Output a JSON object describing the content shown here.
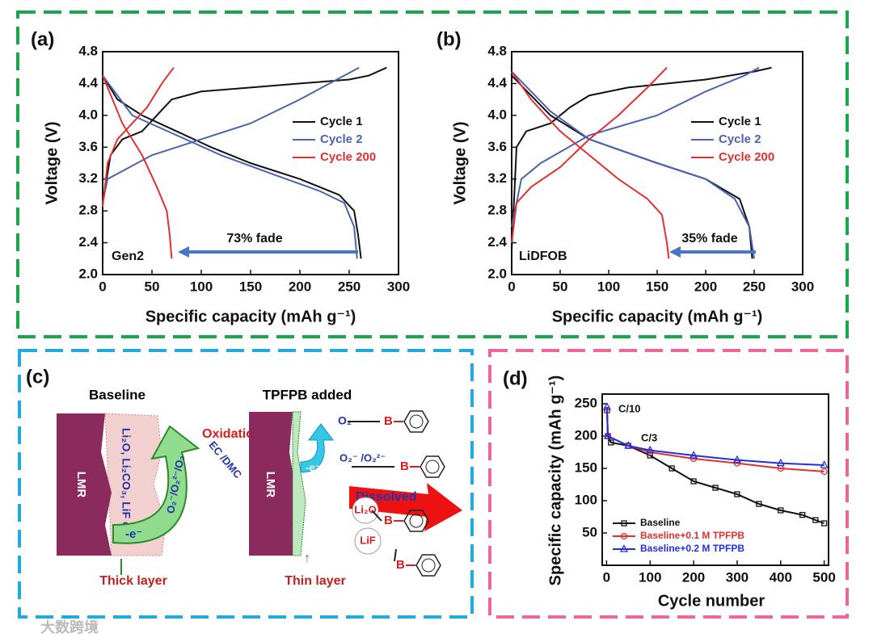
{
  "chart_data": [
    {
      "type": "line",
      "label": "(a)",
      "x_label": "Specific capacity (mAh g⁻¹)",
      "y_label": "Voltage (V)",
      "xlim": [
        0,
        300
      ],
      "xticks": [
        0,
        50,
        100,
        150,
        200,
        250,
        300
      ],
      "ylim": [
        2,
        4.8
      ],
      "yticks": [
        {
          "value": 2,
          "label": "2.0"
        },
        2.4,
        2.8,
        3.2,
        3.6,
        {
          "value": 4,
          "label": "4.0"
        },
        4.4,
        4.8
      ],
      "legend": "right",
      "annotations": [
        "Gen2",
        "73% fade"
      ],
      "series": [
        {
          "name": "Cycle 1",
          "color": "#111111",
          "x": [
            0,
            8,
            20,
            40,
            55,
            70,
            100,
            150,
            200,
            250,
            270,
            288,
            null,
            0,
            15,
            40,
            75,
            110,
            150,
            200,
            240,
            255,
            259,
            262
          ],
          "values": [
            2.9,
            3.5,
            3.7,
            3.8,
            4.0,
            4.2,
            4.3,
            4.35,
            4.4,
            4.45,
            4.5,
            4.6,
            null,
            4.5,
            4.2,
            4.0,
            3.8,
            3.6,
            3.4,
            3.2,
            3.0,
            2.8,
            2.5,
            2.2
          ]
        },
        {
          "name": "Cycle 2",
          "color": "#4a64b0",
          "x": [
            0,
            5,
            20,
            50,
            100,
            150,
            200,
            230,
            260,
            null,
            0,
            30,
            75,
            120,
            175,
            220,
            245,
            255,
            258
          ],
          "values": [
            2.9,
            3.2,
            3.3,
            3.5,
            3.7,
            3.9,
            4.2,
            4.4,
            4.6,
            null,
            4.5,
            4.0,
            3.75,
            3.5,
            3.25,
            3.05,
            2.9,
            2.6,
            2.2
          ]
        },
        {
          "name": "Cycle 200",
          "color": "#e03030",
          "x": [
            0,
            5,
            15,
            30,
            45,
            60,
            72,
            null,
            0,
            20,
            40,
            55,
            65,
            68,
            70
          ],
          "values": [
            2.85,
            3.4,
            3.7,
            3.9,
            4.1,
            4.4,
            4.6,
            null,
            4.5,
            3.9,
            3.5,
            3.1,
            2.8,
            2.5,
            2.2
          ]
        }
      ]
    },
    {
      "type": "line",
      "label": "(b)",
      "x_label": "Specific capacity (mAh g⁻¹)",
      "y_label": "Voltage (V)",
      "xlim": [
        0,
        300
      ],
      "xticks": [
        0,
        50,
        100,
        150,
        200,
        250,
        300
      ],
      "ylim": [
        2,
        4.8
      ],
      "yticks": [
        {
          "value": 2,
          "label": "2.0"
        },
        2.4,
        2.8,
        3.2,
        3.6,
        {
          "value": 4,
          "label": "4.0"
        },
        4.4,
        4.8
      ],
      "legend": "right",
      "annotations": [
        "LiDFOB",
        "35% fade"
      ],
      "series": [
        {
          "name": "Cycle 1",
          "color": "#111111",
          "x": [
            0,
            5,
            15,
            40,
            60,
            80,
            120,
            200,
            250,
            268,
            null,
            0,
            40,
            80,
            150,
            200,
            235,
            245,
            248
          ],
          "values": [
            2.3,
            3.6,
            3.8,
            3.9,
            4.1,
            4.25,
            4.35,
            4.45,
            4.55,
            4.6,
            null,
            4.5,
            4.0,
            3.7,
            3.4,
            3.2,
            2.95,
            2.6,
            2.2
          ]
        },
        {
          "name": "Cycle 2",
          "color": "#4a64b0",
          "x": [
            0,
            10,
            30,
            80,
            150,
            200,
            240,
            255,
            null,
            0,
            40,
            80,
            150,
            200,
            230,
            245,
            250
          ],
          "values": [
            2.6,
            3.2,
            3.4,
            3.75,
            4.0,
            4.3,
            4.5,
            4.6,
            null,
            4.55,
            4.05,
            3.7,
            3.4,
            3.2,
            2.95,
            2.6,
            2.2
          ]
        },
        {
          "name": "Cycle 200",
          "color": "#e03030",
          "x": [
            0,
            5,
            20,
            50,
            80,
            110,
            140,
            160,
            null,
            0,
            20,
            50,
            80,
            110,
            140,
            155,
            160,
            162
          ],
          "values": [
            2.4,
            2.9,
            3.1,
            3.35,
            3.7,
            4.0,
            4.35,
            4.6,
            null,
            4.55,
            4.2,
            3.8,
            3.5,
            3.2,
            2.95,
            2.75,
            2.4,
            2.2
          ]
        }
      ]
    },
    {
      "type": "line",
      "label": "(d)",
      "x_label": "Cycle number",
      "y_label": "Specific capacity (mAh g⁻¹)",
      "xlim": [
        -10,
        510
      ],
      "xticks": [
        0,
        100,
        200,
        300,
        400,
        500
      ],
      "ylim": [
        0,
        265
      ],
      "yticks": [
        50,
        100,
        150,
        200,
        250
      ],
      "legend": "lower left",
      "annotations": [
        "C/10",
        "C/3"
      ],
      "series": [
        {
          "name": "Baseline",
          "color": "#111111",
          "marker": "square",
          "x": [
            1,
            3,
            10,
            50,
            100,
            150,
            200,
            250,
            300,
            350,
            400,
            450,
            480,
            500
          ],
          "values": [
            240,
            200,
            190,
            185,
            170,
            150,
            130,
            120,
            110,
            95,
            85,
            78,
            70,
            65
          ]
        },
        {
          "name": "Baseline+0.1 M TPFPB",
          "color": "#e03030",
          "marker": "circle",
          "x": [
            1,
            3,
            50,
            100,
            200,
            300,
            400,
            500
          ],
          "values": [
            240,
            200,
            185,
            175,
            165,
            158,
            150,
            145
          ]
        },
        {
          "name": "Baseline+0.2 M TPFPB",
          "color": "#2030e0",
          "marker": "triangle",
          "x": [
            1,
            3,
            50,
            100,
            200,
            300,
            400,
            500
          ],
          "values": [
            245,
            200,
            185,
            178,
            170,
            163,
            158,
            155
          ]
        }
      ]
    }
  ],
  "diagram": {
    "label": "(c)",
    "left_title": "Baseline",
    "right_title": "TPFPB added",
    "lmr_left": "LMR",
    "lmr_right": "LMR",
    "layer_species": "Li₂O, Li₂CO₃, LiF etc.",
    "oxidation": "Oxidation",
    "solvent": "EC /DMC",
    "oxygen_species": "O₂⁻/O₂²⁻/O₂",
    "electron_left": "-e⁻",
    "electron_right": "-e⁻",
    "thick_layer": "Thick layer",
    "thin_layer": "Thin layer",
    "o2": "O₂",
    "superoxide": "O₂⁻ /O₂²⁻",
    "dissolved": "Dissolved",
    "li2o": "Li₂O",
    "lif": "LiF",
    "boron": "B"
  },
  "watermark": "大数跨境"
}
